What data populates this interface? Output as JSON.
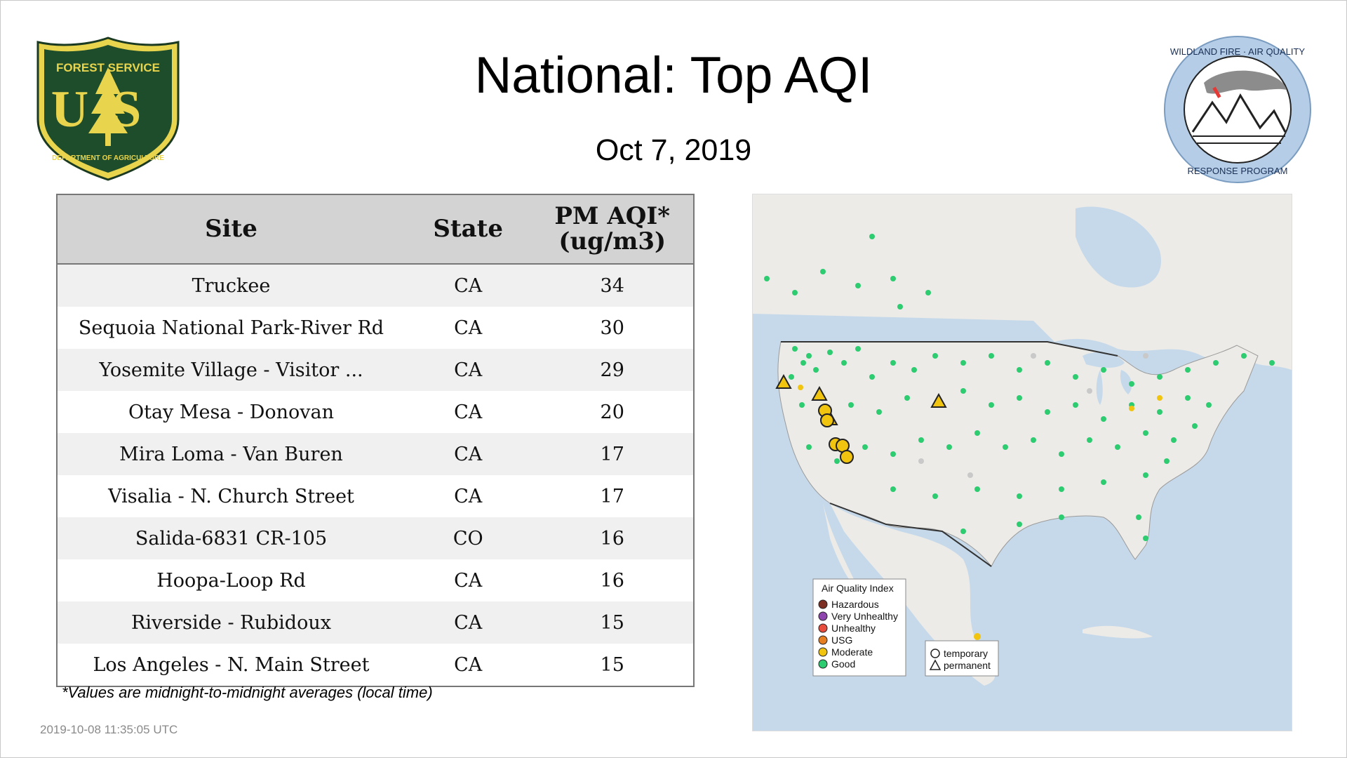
{
  "header": {
    "title": "National: Top AQI",
    "date": "Oct  7, 2019"
  },
  "logos": {
    "usfs": {
      "top_text": "FOREST SERVICE",
      "center_text": "US",
      "bottom_text": "DEPARTMENT OF AGRICULTURE",
      "colors": {
        "shield": "#1e4d2b",
        "gold": "#e8d44d"
      }
    },
    "wfaq": {
      "top_text": "WILDLAND FIRE · AIR QUALITY",
      "bottom_text": "RESPONSE PROGRAM",
      "colors": {
        "ring": "#b5cde6"
      }
    }
  },
  "table": {
    "headers": {
      "site": "Site",
      "state": "State",
      "aqi_line1": "PM AQI*",
      "aqi_line2": "(ug/m3)"
    },
    "rows": [
      {
        "site": "Truckee",
        "state": "CA",
        "aqi": "34"
      },
      {
        "site": "Sequoia National Park-River Rd",
        "state": "CA",
        "aqi": "30"
      },
      {
        "site": "Yosemite Village - Visitor ...",
        "state": "CA",
        "aqi": "29"
      },
      {
        "site": "Otay Mesa - Donovan",
        "state": "CA",
        "aqi": "20"
      },
      {
        "site": "Mira Loma - Van Buren",
        "state": "CA",
        "aqi": "17"
      },
      {
        "site": "Visalia - N. Church Street",
        "state": "CA",
        "aqi": "17"
      },
      {
        "site": "Salida-6831 CR-105",
        "state": "CO",
        "aqi": "16"
      },
      {
        "site": "Hoopa-Loop Rd",
        "state": "CA",
        "aqi": "16"
      },
      {
        "site": "Riverside - Rubidoux",
        "state": "CA",
        "aqi": "15"
      },
      {
        "site": "Los Angeles - N. Main Street",
        "state": "CA",
        "aqi": "15"
      }
    ]
  },
  "footnote": "*Values are midnight-to-midnight averages (local time)",
  "timestamp": "2019-10-08 11:35:05 UTC",
  "map": {
    "colors": {
      "water": "#c6d9ea",
      "land": "#ecebe7",
      "good": "#2ecc71",
      "moderate": "#f1c40f",
      "grey_site": "#c9c9c9"
    },
    "legend": {
      "title": "Air Quality Index",
      "items": [
        {
          "label": "Hazardous",
          "color": "#7e2f24"
        },
        {
          "label": "Very Unhealthy",
          "color": "#8e44ad"
        },
        {
          "label": "Unhealthy",
          "color": "#e74c3c"
        },
        {
          "label": "USG",
          "color": "#e67e22"
        },
        {
          "label": "Moderate",
          "color": "#f1c40f"
        },
        {
          "label": "Good",
          "color": "#2ecc71"
        }
      ]
    },
    "shape_legend": {
      "temporary": "temporary",
      "permanent": "permanent"
    }
  }
}
